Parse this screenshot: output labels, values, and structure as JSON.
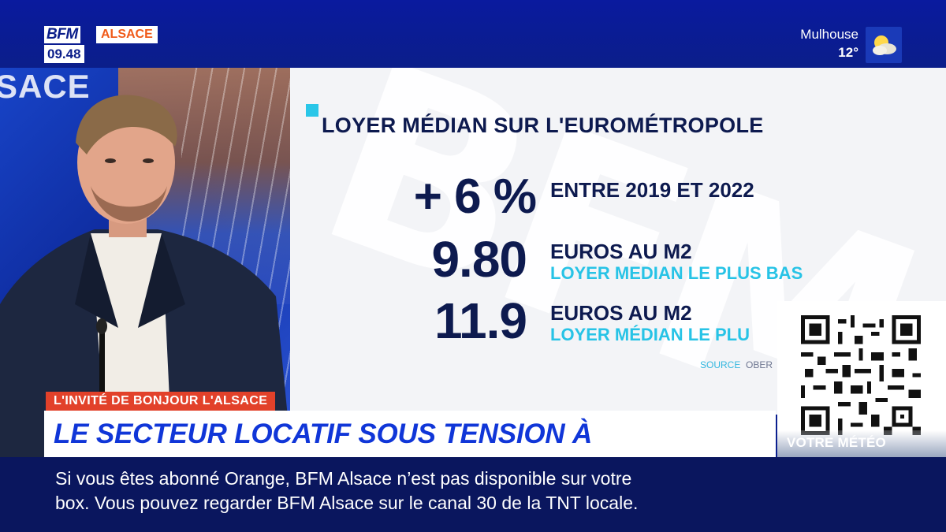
{
  "header": {
    "brand": "BFM",
    "region": "ALSACE",
    "time": "09.48",
    "weather": {
      "city": "Mulhouse",
      "temperature": "12°",
      "icon": "sun-cloud-icon"
    }
  },
  "studio": {
    "background_text": "SACE"
  },
  "infographic": {
    "title": "LOYER MÉDIAN SUR L'EUROMÉTROPOLE",
    "watermark": "BFM",
    "stats": [
      {
        "value": "+ 6 %",
        "label": "ENTRE 2019 ET 2022",
        "sub": ""
      },
      {
        "value": "9.80",
        "label": "EUROS AU M2",
        "sub": "LOYER MEDIAN LE PLUS BAS"
      },
      {
        "value": "11.9",
        "label": "EUROS AU M2",
        "sub": "LOYER MÉDIAN LE PLU"
      }
    ],
    "source_label": "SOURCE",
    "source_name": "OBER"
  },
  "qr": {
    "label": "VOTRE MÉTÉO"
  },
  "lower_third": {
    "show": "L'INVITÉ DE BONJOUR L'ALSACE",
    "headline": "LE SECTEUR LOCATIF SOUS TENSION À STRASBOURG ?"
  },
  "ticker": {
    "line1": "Si vous êtes abonné Orange, BFM Alsace n’est pas disponible sur votre",
    "line2": "box. Vous pouvez regarder BFM Alsace sur le canal 30 de la TNT locale."
  },
  "colors": {
    "brand_blue": "#0b1e8a",
    "accent_cyan": "#27c3e6",
    "headline_blue": "#1036d8",
    "tag_red": "#e2412a",
    "region_orange": "#f05a19"
  }
}
